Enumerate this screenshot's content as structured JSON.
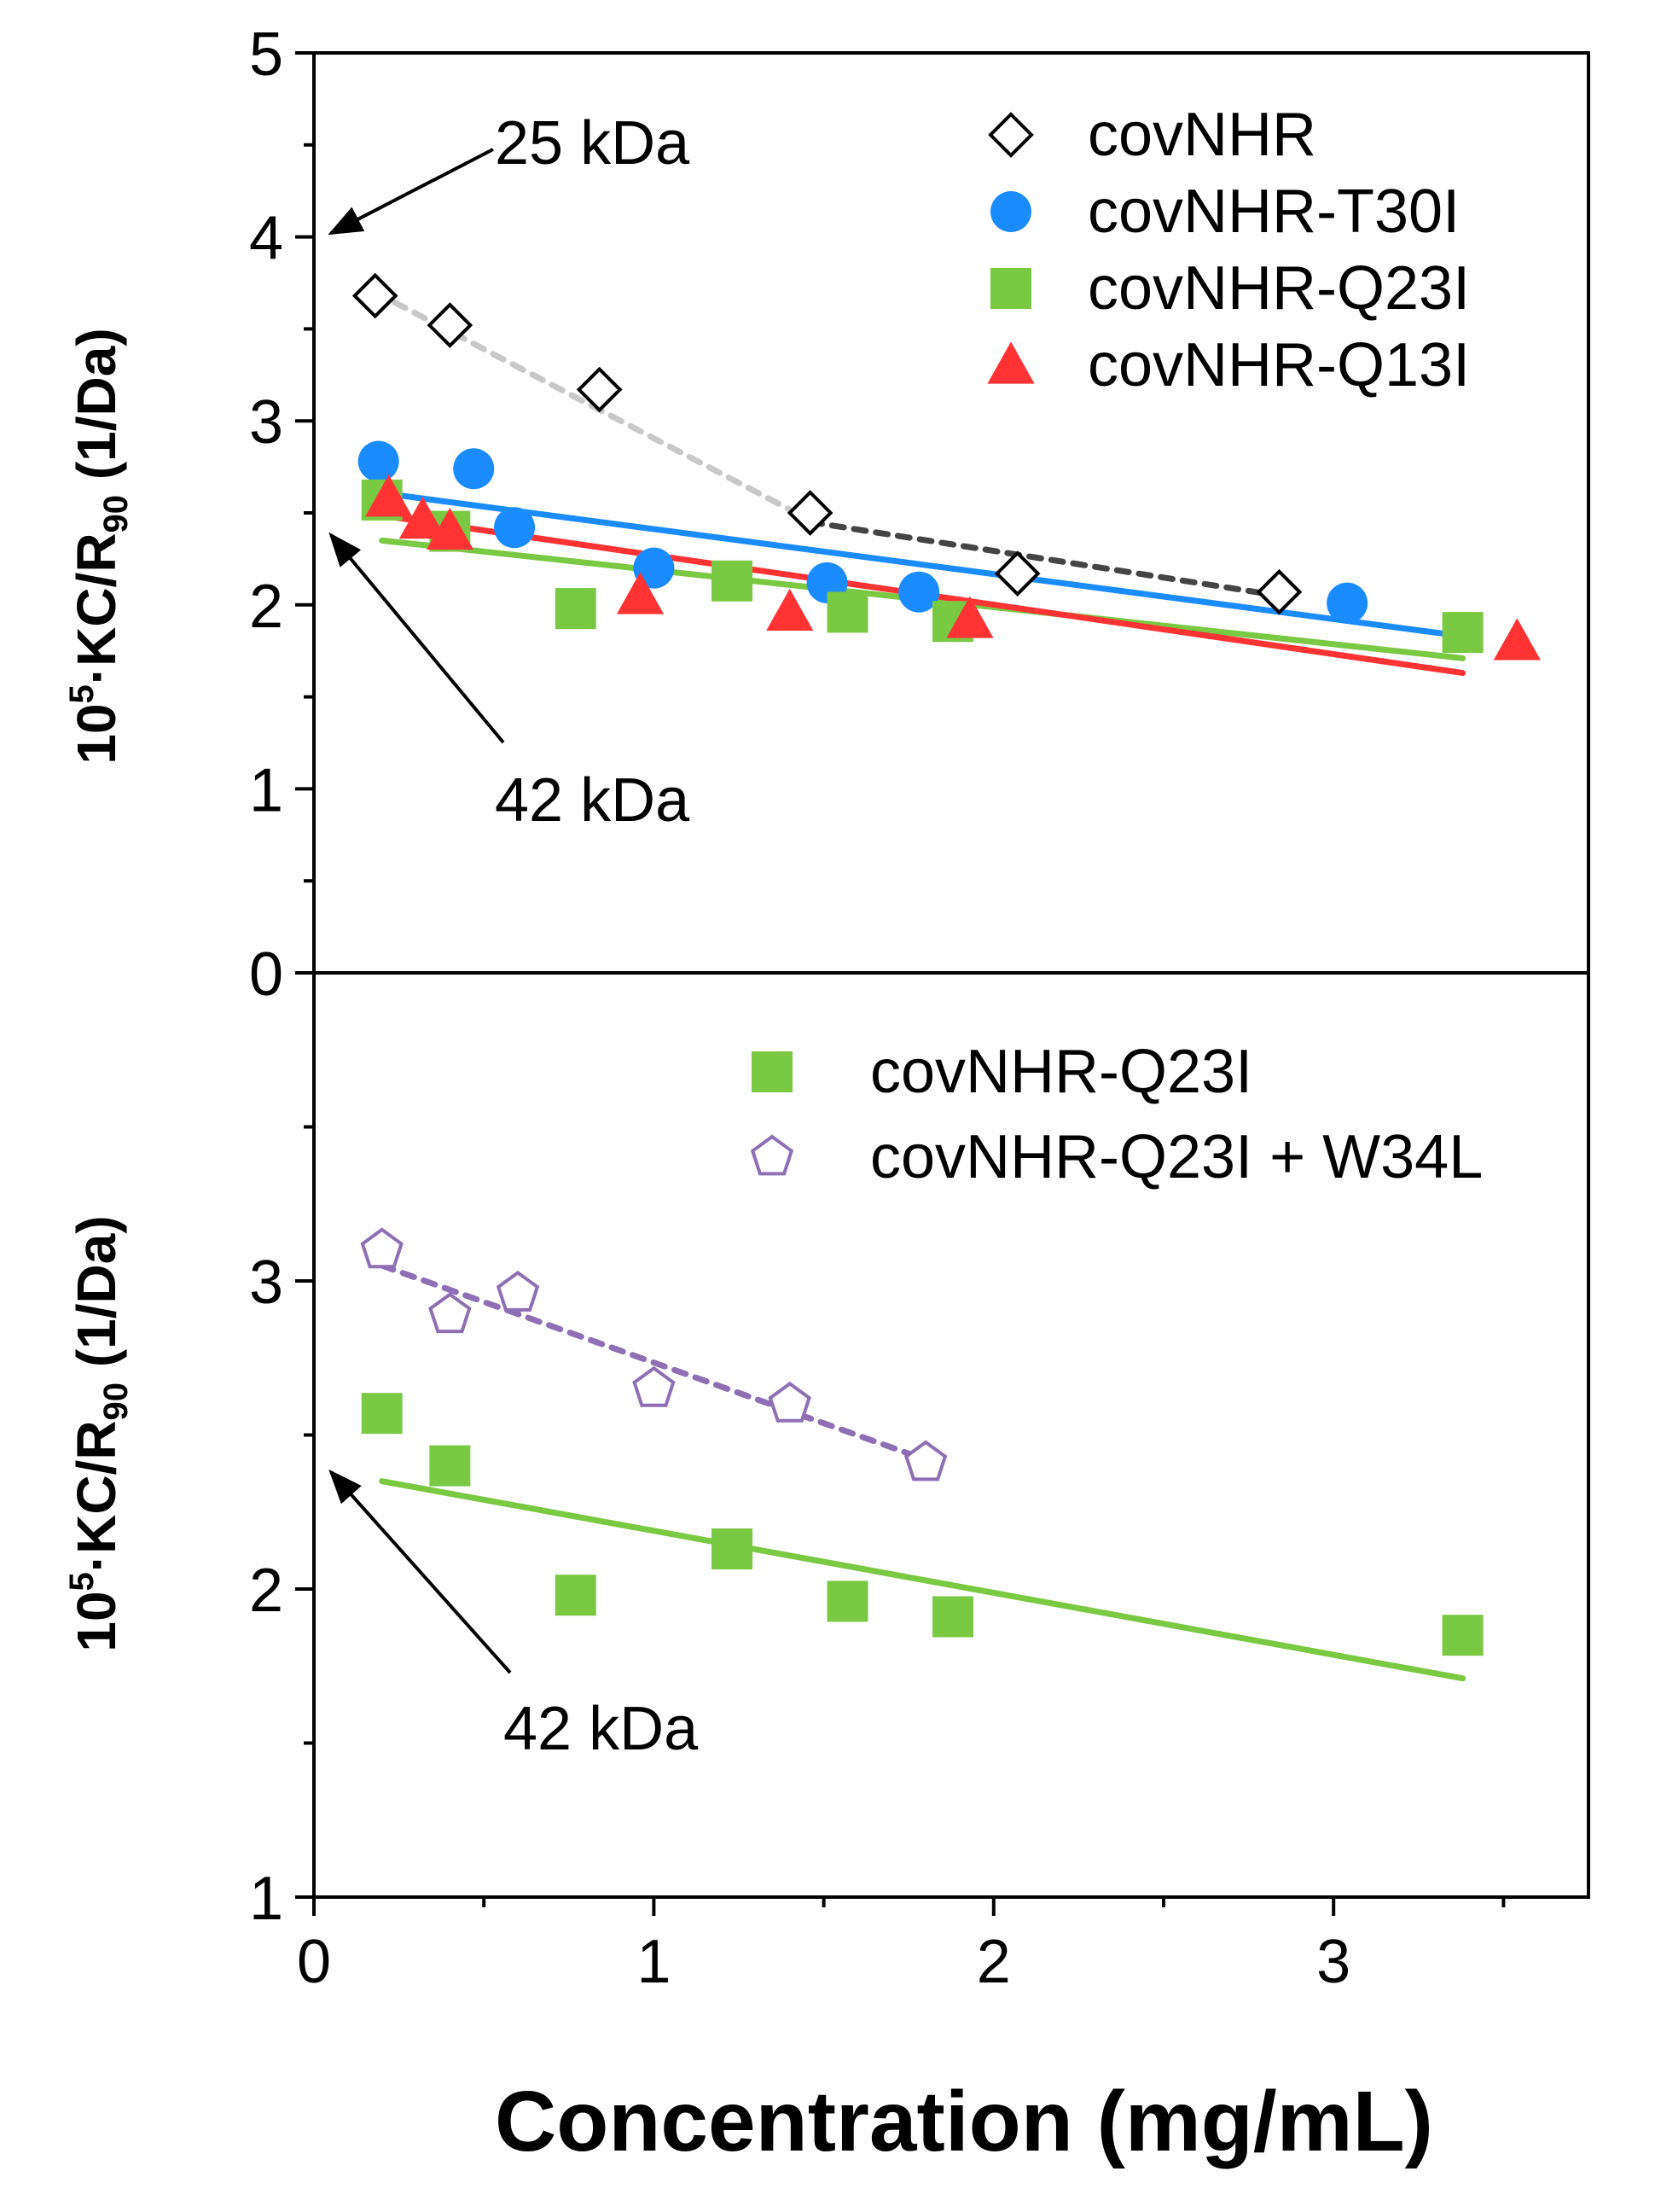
{
  "chart_data": [
    {
      "type": "scatter",
      "panel": "top",
      "ylabel": {
        "prefix": "10",
        "sup": "5",
        "mid": "·KC/R",
        "sub": "90",
        "suffix": " (1/Da)"
      },
      "xlim": [
        0,
        3.75
      ],
      "ylim": [
        0,
        5
      ],
      "yticks": [
        0,
        1,
        2,
        3,
        4,
        5
      ],
      "legend_position": "top-right",
      "series": [
        {
          "name": "covNHR",
          "marker": "diamond-open",
          "color": "#000000",
          "points": [
            [
              0.18,
              3.68
            ],
            [
              0.4,
              3.52
            ],
            [
              0.84,
              3.17
            ],
            [
              1.46,
              2.5
            ],
            [
              2.07,
              2.17
            ],
            [
              2.84,
              2.07
            ]
          ],
          "fits": [
            {
              "x": [
                0.18,
                1.46
              ],
              "y": [
                3.7,
                2.46
              ],
              "style": "dashed",
              "color": "#c8c8c8"
            },
            {
              "x": [
                1.46,
                2.84
              ],
              "y": [
                2.45,
                2.05
              ],
              "style": "dashed",
              "color": "#444444"
            }
          ]
        },
        {
          "name": "covNHR-T30I",
          "marker": "circle",
          "color": "#1a8cff",
          "points": [
            [
              0.19,
              2.78
            ],
            [
              0.47,
              2.74
            ],
            [
              0.59,
              2.42
            ],
            [
              1.0,
              2.2
            ],
            [
              1.51,
              2.12
            ],
            [
              1.78,
              2.07
            ],
            [
              3.04,
              2.01
            ]
          ],
          "fits": [
            {
              "x": [
                0.19,
                3.38
              ],
              "y": [
                2.61,
                1.83
              ],
              "style": "solid",
              "color": "#1a8cff"
            }
          ]
        },
        {
          "name": "covNHR-Q23I",
          "marker": "square",
          "color": "#7ac943",
          "points": [
            [
              0.2,
              2.57
            ],
            [
              0.4,
              2.4
            ],
            [
              0.77,
              1.98
            ],
            [
              1.23,
              2.13
            ],
            [
              1.57,
              1.96
            ],
            [
              1.88,
              1.91
            ],
            [
              3.38,
              1.85
            ]
          ],
          "fits": [
            {
              "x": [
                0.2,
                3.38
              ],
              "y": [
                2.35,
                1.71
              ],
              "style": "solid",
              "color": "#7ac943"
            }
          ]
        },
        {
          "name": "covNHR-Q13I",
          "marker": "triangle",
          "color": "#ff3333",
          "points": [
            [
              0.22,
              2.58
            ],
            [
              0.32,
              2.46
            ],
            [
              0.4,
              2.4
            ],
            [
              0.96,
              2.05
            ],
            [
              1.4,
              1.96
            ],
            [
              1.93,
              1.92
            ],
            [
              3.54,
              1.8
            ]
          ],
          "fits": [
            {
              "x": [
                0.22,
                3.38
              ],
              "y": [
                2.48,
                1.63
              ],
              "style": "solid",
              "color": "#ff3333"
            }
          ]
        }
      ],
      "annotations": [
        {
          "text": "25 kDa",
          "points_to": [
            0.05,
            4.02
          ]
        },
        {
          "text": "42 kDa",
          "points_to": [
            0.05,
            2.38
          ]
        }
      ]
    },
    {
      "type": "scatter",
      "panel": "bottom",
      "xlabel": "Concentration (mg/mL)",
      "ylabel": {
        "prefix": "10",
        "sup": "5",
        "mid": "·KC/R",
        "sub": "90",
        "suffix": " (1/Da)"
      },
      "xlim": [
        0,
        3.75
      ],
      "ylim": [
        1,
        4
      ],
      "yticks": [
        1,
        2,
        3
      ],
      "xticks": [
        0,
        1,
        2,
        3
      ],
      "legend_position": "top-right",
      "series": [
        {
          "name": "covNHR-Q23I",
          "marker": "square",
          "color": "#7ac943",
          "points": [
            [
              0.2,
              2.57
            ],
            [
              0.4,
              2.4
            ],
            [
              0.77,
              1.98
            ],
            [
              1.23,
              2.13
            ],
            [
              1.57,
              1.96
            ],
            [
              1.88,
              1.91
            ],
            [
              3.38,
              1.85
            ]
          ],
          "fits": [
            {
              "x": [
                0.2,
                3.38
              ],
              "y": [
                2.35,
                1.71
              ],
              "style": "solid",
              "color": "#7ac943"
            }
          ]
        },
        {
          "name": "covNHR-Q23I + W34L",
          "marker": "pentagon-open",
          "color": "#8e6fb5",
          "points": [
            [
              0.2,
              3.1
            ],
            [
              0.4,
              2.89
            ],
            [
              0.6,
              2.96
            ],
            [
              1.0,
              2.65
            ],
            [
              1.4,
              2.6
            ],
            [
              1.8,
              2.41
            ]
          ],
          "fits": [
            {
              "x": [
                0.2,
                1.8
              ],
              "y": [
                3.05,
                2.42
              ],
              "style": "dashed",
              "color": "#8e6fb5"
            }
          ]
        }
      ],
      "annotations": [
        {
          "text": "42 kDa",
          "points_to": [
            0.05,
            2.38
          ]
        }
      ]
    }
  ]
}
